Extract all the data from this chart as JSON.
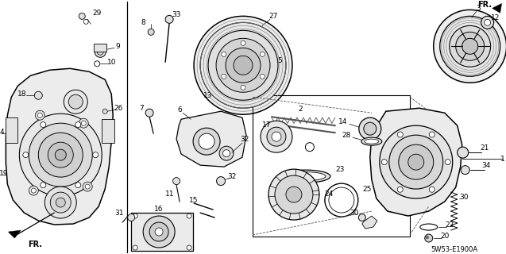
{
  "bg_color": "#ffffff",
  "diagram_code": "5W53-E1900A",
  "fr_label": "FR.",
  "g1": "#f0f0f0",
  "g2": "#e0e0e0",
  "g3": "#d0d0d0",
  "g4": "#c0c0c0",
  "g5": "#b0b0b0",
  "mg": "#888888",
  "dk": "#555555"
}
